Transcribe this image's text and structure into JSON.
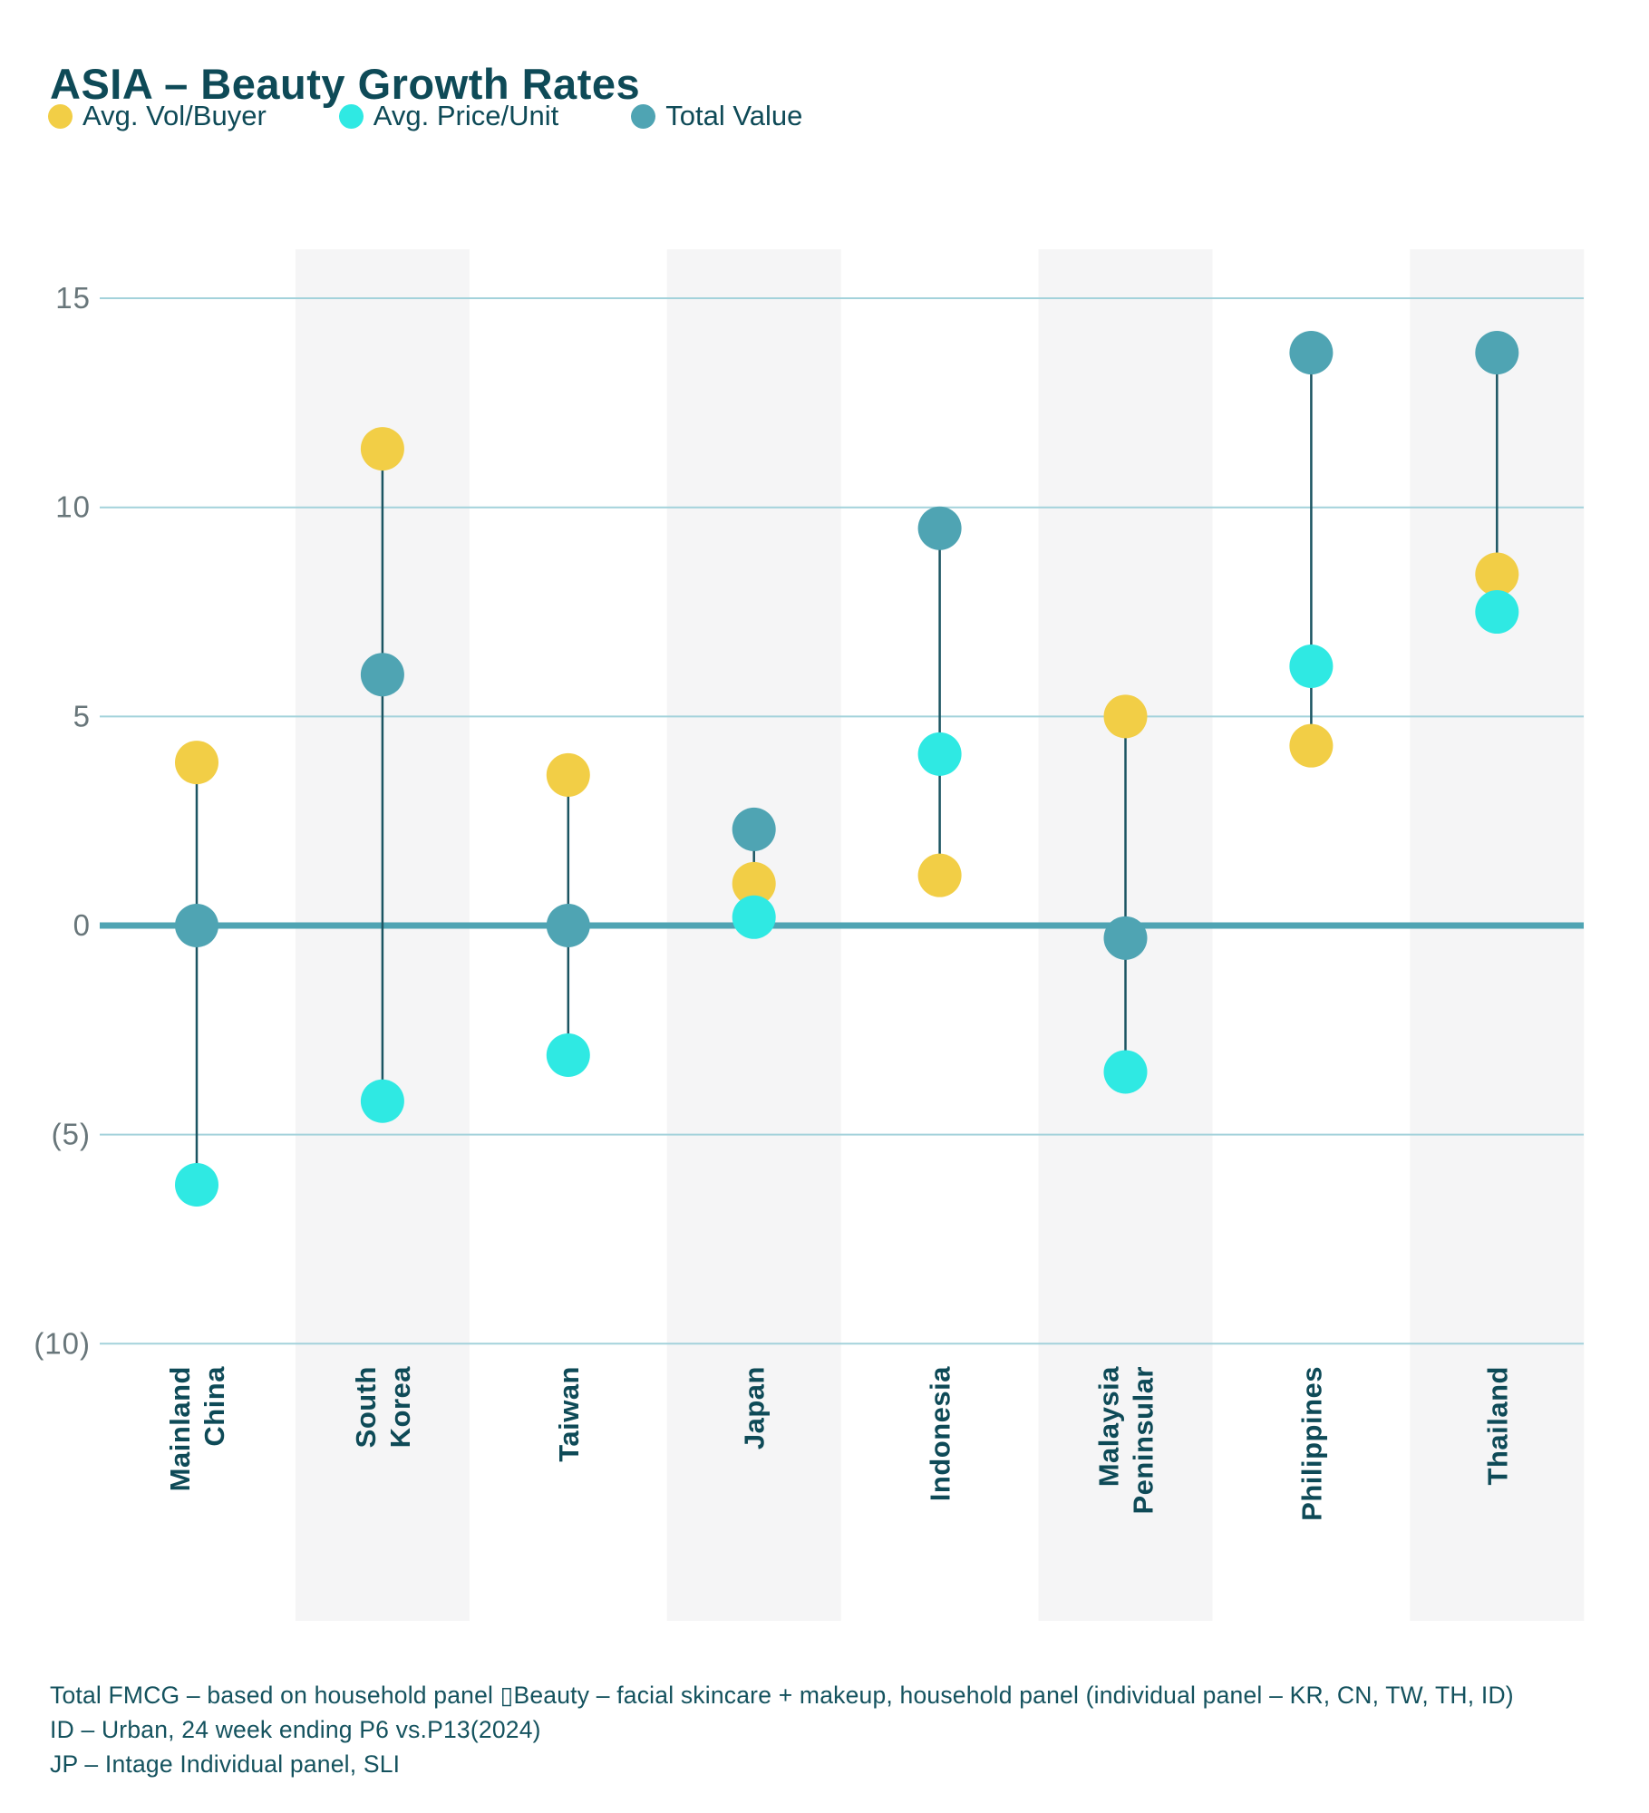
{
  "title": "ASIA – Beauty Growth Rates",
  "legend": [
    {
      "label": "Avg. Vol/Buyer",
      "color": "#F2CE46"
    },
    {
      "label": "Avg. Price/Unit",
      "color": "#2FE9E3"
    },
    {
      "label": "Total Value",
      "color": "#4FA4B3"
    }
  ],
  "chart_data": {
    "type": "scatter",
    "subtype": "dot-range-columns",
    "title": "ASIA – Beauty Growth Rates",
    "categories": [
      "Mainland China",
      "South Korea",
      "Taiwan",
      "Japan",
      "Indonesia",
      "Malaysia Peninsular",
      "Philippines",
      "Thailand"
    ],
    "category_lines": [
      [
        "Mainland",
        "China"
      ],
      [
        "South",
        "Korea"
      ],
      [
        "Taiwan"
      ],
      [
        "Japan"
      ],
      [
        "Indonesia"
      ],
      [
        "Malaysia",
        "Peninsular"
      ],
      [
        "Philippines"
      ],
      [
        "Thailand"
      ]
    ],
    "series": [
      {
        "name": "Avg. Vol/Buyer",
        "color": "#F2CE46",
        "values": [
          3.9,
          11.4,
          3.6,
          1.0,
          1.2,
          5.0,
          4.3,
          8.4
        ]
      },
      {
        "name": "Avg. Price/Unit",
        "color": "#2FE9E3",
        "values": [
          -6.2,
          -4.2,
          -3.1,
          0.2,
          4.1,
          -3.5,
          6.2,
          7.5
        ]
      },
      {
        "name": "Total Value",
        "color": "#4FA4B3",
        "values": [
          0.0,
          6.0,
          0.0,
          2.3,
          9.5,
          -0.3,
          13.7,
          13.7
        ]
      }
    ],
    "yticks": [
      {
        "value": 15,
        "label": "15"
      },
      {
        "value": 10,
        "label": "10"
      },
      {
        "value": 5,
        "label": "5"
      },
      {
        "value": 0,
        "label": "0"
      },
      {
        "value": -5,
        "label": "(5)"
      },
      {
        "value": -10,
        "label": "(10)"
      }
    ],
    "ylim": [
      -10,
      15
    ],
    "grid": true,
    "shaded_band_columns": [
      "South Korea",
      "Japan",
      "Malaysia Peninsular",
      "Thailand"
    ],
    "legend_position": "top-left",
    "colors": {
      "gridline": "#A3D2DB",
      "zero_line": "#4FA4B3",
      "connector": "#1B5562",
      "band": "#F5F5F6",
      "tick_text": "#68767A",
      "category_text": "#0E4A57"
    }
  },
  "footer": {
    "lines": [
      "Total FMCG – based on household panel ▯Beauty – facial skincare + makeup, household panel (individual panel – KR, CN, TW, TH, ID)",
      "ID – Urban, 24 week ending P6 vs.P13(2024)",
      "JP – Intage Individual panel, SLI"
    ]
  }
}
